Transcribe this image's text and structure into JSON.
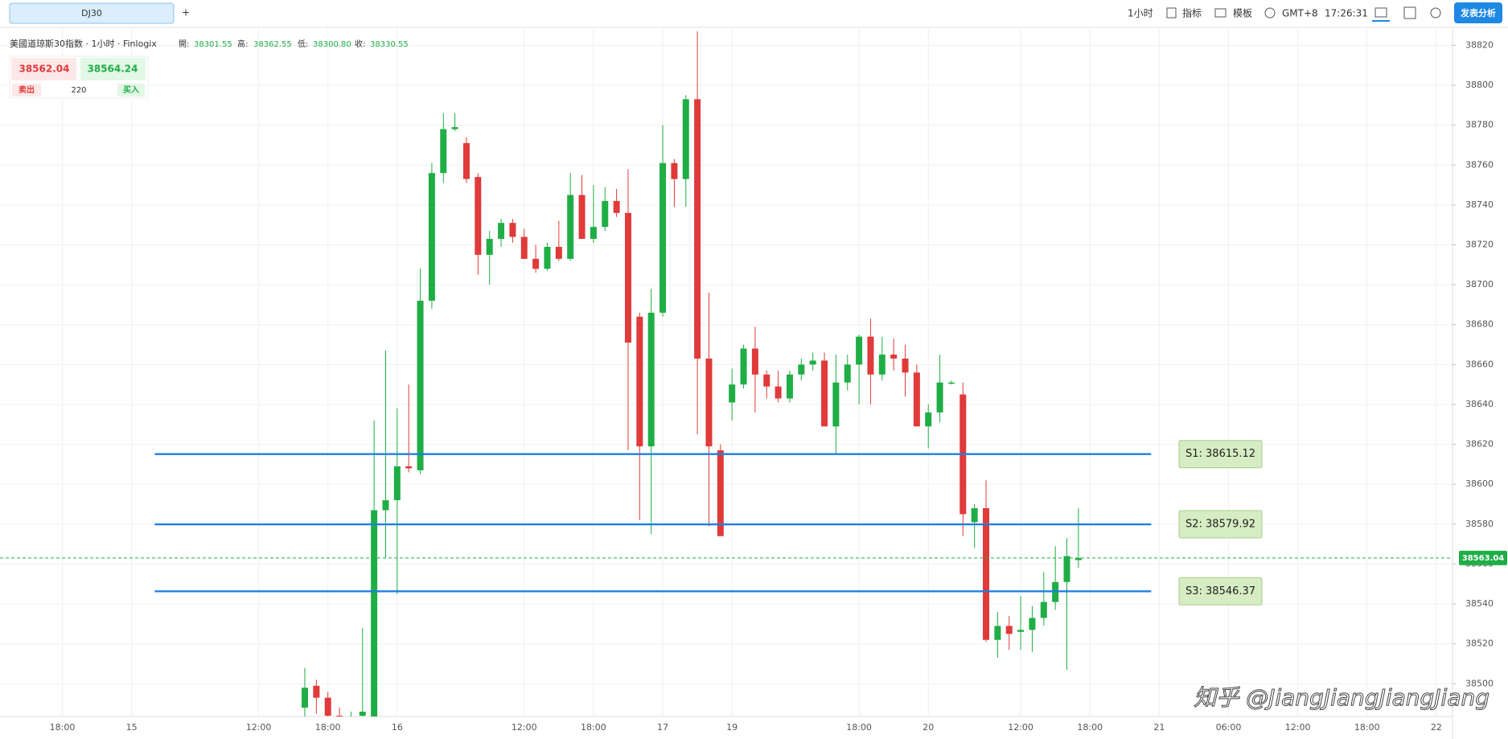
{
  "toolbar": {
    "tab": "DJ30",
    "add": "+",
    "interval": "1小时",
    "indicators": "指标",
    "templates": "模板",
    "timezone": "GMT+8",
    "clock": "17:26:31",
    "publish": "发表分析"
  },
  "info": {
    "symbol": "美國道琼斯30指数 · 1小时 · Finlogix",
    "open_label": "開:",
    "open": "38301.55",
    "high_label": "高:",
    "high": "38362.55",
    "low_label": "低:",
    "low": "38300.80",
    "close_label": "收:",
    "close": "38330.55"
  },
  "quote": {
    "sell_price": "38562.04",
    "buy_price": "38564.24",
    "sell": "卖出",
    "spread": "220",
    "buy": "买入"
  },
  "watermark": "知乎 @JiangJiangJiangJiang",
  "chart_data": {
    "type": "candlestick",
    "up_color": "#1fae45",
    "down_color": "#e03a3a",
    "grid": true,
    "open": [
      38488,
      38499,
      38493,
      38484,
      38480,
      38484,
      38480,
      38587,
      38592,
      38609,
      38607,
      38692,
      38756,
      38778,
      38771,
      38754,
      38715,
      38723,
      38731,
      38724,
      38713,
      38708,
      38719,
      38713,
      38745,
      38723,
      38729,
      38742,
      38736,
      38684,
      38619,
      38686,
      38761,
      38753,
      38793,
      38663,
      38617,
      38641,
      38650,
      38668,
      38655,
      38649,
      38643,
      38655,
      38660,
      38662,
      38629,
      38651,
      38660,
      38674,
      38655,
      38665,
      38663,
      38656,
      38629,
      38636,
      38651,
      38645,
      38581,
      38588,
      38522,
      38529,
      38526,
      38527,
      38533,
      38541,
      38551,
      38562
    ],
    "high": [
      38508,
      38502,
      38496,
      38488,
      38486,
      38528,
      38632,
      38667,
      38638,
      38650,
      38708,
      38761,
      38786,
      38786,
      38774,
      38756,
      38727,
      38733,
      38733,
      38728,
      38720,
      38721,
      38732,
      38756,
      38755,
      38750,
      38749,
      38748,
      38758,
      38686,
      38698,
      38780,
      38763,
      38795,
      38827,
      38696,
      38620,
      38658,
      38670,
      38679,
      38657,
      38657,
      38657,
      38663,
      38666,
      38666,
      38665,
      38665,
      38675,
      38683,
      38674,
      38673,
      38670,
      38660,
      38640,
      38665,
      38652,
      38651,
      38590,
      38602,
      38536,
      38534,
      38544,
      38539,
      38556,
      38569,
      38573,
      38588
    ],
    "low": [
      38480,
      38485,
      38478,
      38476,
      38474,
      38478,
      38470,
      38563,
      38545,
      38606,
      38605,
      38688,
      38751,
      38777,
      38751,
      38705,
      38700,
      38719,
      38721,
      38713,
      38706,
      38707,
      38712,
      38712,
      38723,
      38721,
      38727,
      38734,
      38617,
      38582,
      38575,
      38684,
      38739,
      38739,
      38625,
      38579,
      38574,
      38632,
      38648,
      38636,
      38643,
      38641,
      38641,
      38652,
      38657,
      38629,
      38615,
      38647,
      38640,
      38640,
      38652,
      38657,
      38644,
      38629,
      38618,
      38631,
      38650,
      38574,
      38568,
      38521,
      38513,
      38517,
      38517,
      38516,
      38529,
      38537,
      38507,
      38558
    ],
    "close": [
      38498,
      38493,
      38484,
      38482,
      38482,
      38486,
      38587,
      38592,
      38609,
      38608,
      38692,
      38756,
      38778,
      38779,
      38753,
      38715,
      38723,
      38731,
      38724,
      38713,
      38708,
      38719,
      38713,
      38745,
      38723,
      38729,
      38742,
      38736,
      38671,
      38619,
      38686,
      38761,
      38753,
      38793,
      38663,
      38619,
      38574,
      38650,
      38668,
      38655,
      38649,
      38643,
      38655,
      38660,
      38662,
      38629,
      38651,
      38660,
      38674,
      38655,
      38665,
      38663,
      38656,
      38629,
      38636,
      38651,
      38651,
      38585,
      38588,
      38522,
      38529,
      38525,
      38527,
      38533,
      38541,
      38551,
      38564,
      38563.04
    ],
    "xlim": [
      -26.4,
      99.4
    ],
    "xticks": [
      {
        "value": -21,
        "label": "18:00"
      },
      {
        "value": -15,
        "label": "15"
      },
      {
        "value": -4,
        "label": "12:00"
      },
      {
        "value": 2,
        "label": "18:00"
      },
      {
        "value": 8,
        "label": "16"
      },
      {
        "value": 19,
        "label": "12:00"
      },
      {
        "value": 25,
        "label": "18:00"
      },
      {
        "value": 31,
        "label": "17"
      },
      {
        "value": 37,
        "label": "19"
      },
      {
        "value": 48,
        "label": "18:00"
      },
      {
        "value": 54,
        "label": "20"
      },
      {
        "value": 62,
        "label": "12:00"
      },
      {
        "value": 68,
        "label": "18:00"
      },
      {
        "value": 74,
        "label": "21"
      },
      {
        "value": 80,
        "label": "06:00"
      },
      {
        "value": 86,
        "label": "12:00"
      },
      {
        "value": 92,
        "label": "18:00"
      },
      {
        "value": 98,
        "label": "22"
      }
    ],
    "ylim": [
      38483.6,
      38825.8
    ],
    "yticks": [
      38500,
      38520,
      38540,
      38560,
      38580,
      38600,
      38620,
      38640,
      38660,
      38680,
      38700,
      38720,
      38740,
      38760,
      38780,
      38800,
      38820
    ],
    "last_price": 38563.04,
    "support_lines": [
      {
        "label": "S1: 38615.12",
        "value": 38615.12
      },
      {
        "label": "S2: 38579.92",
        "value": 38579.92
      },
      {
        "label": "S3: 38546.37",
        "value": 38546.37
      }
    ],
    "support_color": "#1f7fe0"
  }
}
